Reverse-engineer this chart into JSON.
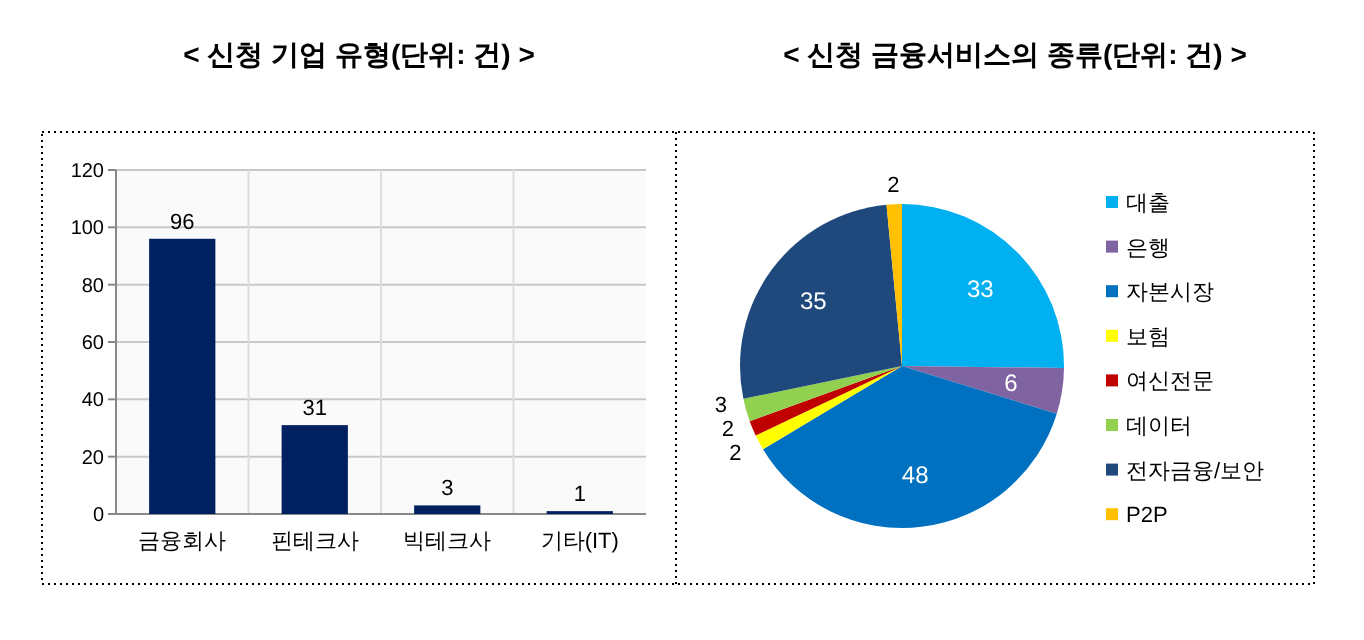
{
  "chart_data": [
    {
      "type": "bar",
      "title": "< 신청 기업 유형(단위: 건) >",
      "categories": [
        "금융회사",
        "핀테크사",
        "빅테크사",
        "기타(IT)"
      ],
      "values": [
        96,
        31,
        3,
        1
      ],
      "color": "#002060",
      "ylim": [
        0,
        120
      ],
      "yticks": [
        0,
        20,
        40,
        60,
        80,
        100,
        120
      ],
      "grid": true,
      "data_labels": true
    },
    {
      "type": "pie",
      "title": "< 신청 금융서비스의 종류(단위: 건) >",
      "categories": [
        "대출",
        "은행",
        "자본시장",
        "보험",
        "여신전문",
        "데이터",
        "전자금융/보안",
        "P2P"
      ],
      "values": [
        33,
        6,
        48,
        2,
        2,
        3,
        35,
        2
      ],
      "colors": [
        "#00b0f0",
        "#8064a2",
        "#0070c0",
        "#ffff00",
        "#c00000",
        "#92d050",
        "#1f497d",
        "#ffc000"
      ],
      "data_labels": true,
      "legend": "right"
    }
  ]
}
